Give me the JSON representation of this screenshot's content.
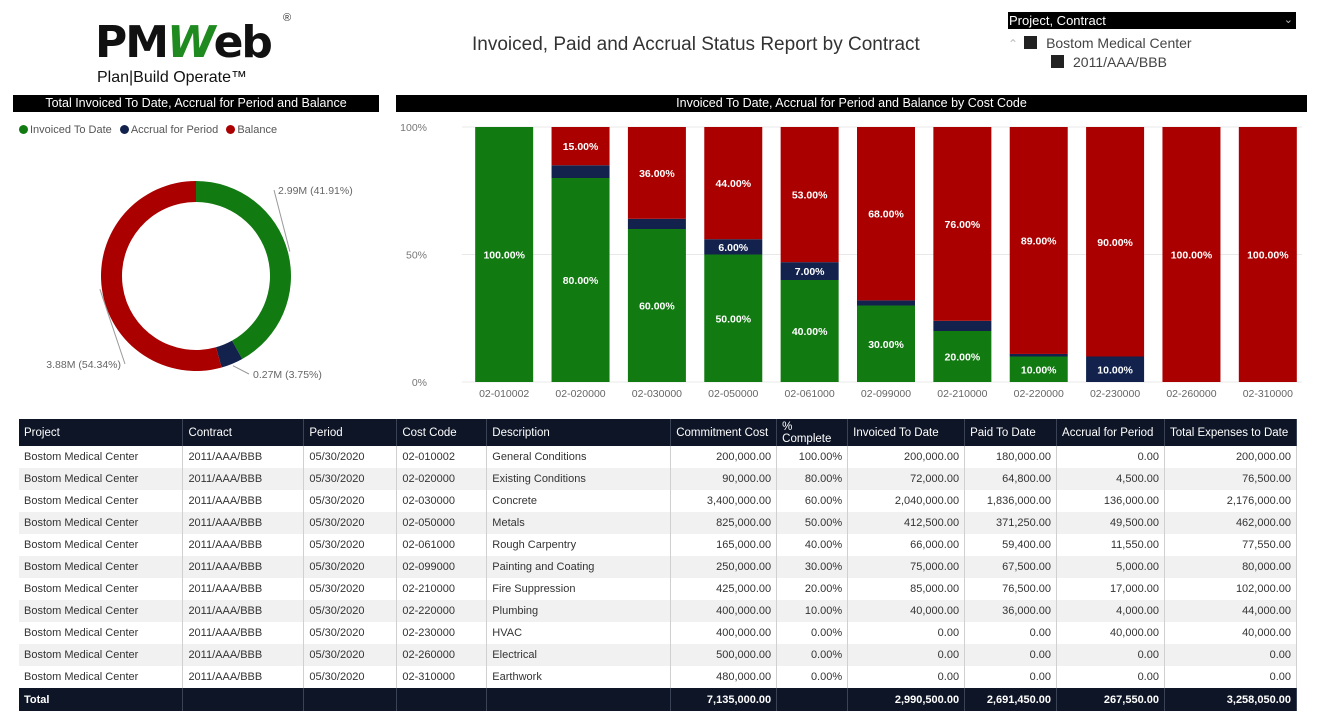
{
  "logo": {
    "word_a": "PM",
    "word_b": "W",
    "word_c": "eb",
    "reg": "®",
    "tagline": "Plan|Build Operate™"
  },
  "report_title": "Invoiced, Paid and Accrual Status Report by Contract",
  "slicer": {
    "header": "Project, Contract",
    "items": [
      {
        "label": "Bostom Medical Center",
        "level": 0
      },
      {
        "label": "2011/AAA/BBB",
        "level": 1
      }
    ]
  },
  "colors": {
    "invoiced": "#117a11",
    "accrual": "#12224d",
    "balance": "#ab0000",
    "header_bg": "#000000",
    "table_header_bg": "#0e1526"
  },
  "donut": {
    "header": "Total Invoiced To Date, Accrual for Period and Balance",
    "legend": [
      {
        "label": "Invoiced To Date",
        "color": "#117a11"
      },
      {
        "label": "Accrual for Period",
        "color": "#12224d"
      },
      {
        "label": "Balance",
        "color": "#ab0000"
      }
    ]
  },
  "bar": {
    "header": "Invoiced To Date, Accrual for Period and Balance by Cost Code"
  },
  "chart_data": [
    {
      "type": "pie",
      "title": "Total Invoiced To Date, Accrual for Period and Balance",
      "donut": true,
      "legend_position": "top-left",
      "slices": [
        {
          "name": "Invoiced To Date",
          "value": 2.99,
          "percent": 41.91,
          "label": "2.99M (41.91%)"
        },
        {
          "name": "Accrual for Period",
          "value": 0.27,
          "percent": 3.75,
          "label": "0.27M (3.75%)"
        },
        {
          "name": "Balance",
          "value": 3.88,
          "percent": 54.34,
          "label": "3.88M (54.34%)"
        }
      ]
    },
    {
      "type": "bar",
      "stacked": "100%",
      "title": "Invoiced To Date, Accrual for Period and Balance by Cost Code",
      "ylim": [
        0,
        100
      ],
      "yticks": [
        "0%",
        "50%",
        "100%"
      ],
      "categories": [
        "02-010002",
        "02-020000",
        "02-030000",
        "02-050000",
        "02-061000",
        "02-099000",
        "02-210000",
        "02-220000",
        "02-230000",
        "02-260000",
        "02-310000"
      ],
      "series": [
        {
          "name": "Invoiced To Date",
          "values": [
            100,
            80,
            60,
            50,
            40,
            30,
            20,
            10,
            0,
            0,
            0
          ],
          "labels": [
            "100.00%",
            "80.00%",
            "60.00%",
            "50.00%",
            "40.00%",
            "30.00%",
            "20.00%",
            "10.00%",
            "",
            "",
            ""
          ]
        },
        {
          "name": "Accrual for Period",
          "values": [
            0,
            5,
            4,
            6,
            7,
            2,
            4,
            1,
            10,
            0,
            0
          ],
          "labels": [
            "",
            "",
            "",
            "6.00%",
            "7.00%",
            "",
            "",
            "",
            "10.00%",
            "",
            ""
          ]
        },
        {
          "name": "Balance",
          "values": [
            0,
            15,
            36,
            44,
            53,
            68,
            76,
            89,
            90,
            100,
            100
          ],
          "labels": [
            "",
            "15.00%",
            "36.00%",
            "44.00%",
            "53.00%",
            "68.00%",
            "76.00%",
            "89.00%",
            "90.00%",
            "100.00%",
            "100.00%"
          ]
        }
      ]
    }
  ],
  "table": {
    "columns": [
      "Project",
      "Contract",
      "Period",
      "Cost Code",
      "Description",
      "Commitment Cost",
      "% Complete",
      "Invoiced To Date",
      "Paid To Date",
      "Accrual for Period",
      "Total Expenses to Date"
    ],
    "rows": [
      [
        "Bostom Medical Center",
        "2011/AAA/BBB",
        "05/30/2020",
        "02-010002",
        "General Conditions",
        "200,000.00",
        "100.00%",
        "200,000.00",
        "180,000.00",
        "0.00",
        "200,000.00"
      ],
      [
        "Bostom Medical Center",
        "2011/AAA/BBB",
        "05/30/2020",
        "02-020000",
        "Existing Conditions",
        "90,000.00",
        "80.00%",
        "72,000.00",
        "64,800.00",
        "4,500.00",
        "76,500.00"
      ],
      [
        "Bostom Medical Center",
        "2011/AAA/BBB",
        "05/30/2020",
        "02-030000",
        "Concrete",
        "3,400,000.00",
        "60.00%",
        "2,040,000.00",
        "1,836,000.00",
        "136,000.00",
        "2,176,000.00"
      ],
      [
        "Bostom Medical Center",
        "2011/AAA/BBB",
        "05/30/2020",
        "02-050000",
        "Metals",
        "825,000.00",
        "50.00%",
        "412,500.00",
        "371,250.00",
        "49,500.00",
        "462,000.00"
      ],
      [
        "Bostom Medical Center",
        "2011/AAA/BBB",
        "05/30/2020",
        "02-061000",
        "Rough Carpentry",
        "165,000.00",
        "40.00%",
        "66,000.00",
        "59,400.00",
        "11,550.00",
        "77,550.00"
      ],
      [
        "Bostom Medical Center",
        "2011/AAA/BBB",
        "05/30/2020",
        "02-099000",
        "Painting and Coating",
        "250,000.00",
        "30.00%",
        "75,000.00",
        "67,500.00",
        "5,000.00",
        "80,000.00"
      ],
      [
        "Bostom Medical Center",
        "2011/AAA/BBB",
        "05/30/2020",
        "02-210000",
        "Fire Suppression",
        "425,000.00",
        "20.00%",
        "85,000.00",
        "76,500.00",
        "17,000.00",
        "102,000.00"
      ],
      [
        "Bostom Medical Center",
        "2011/AAA/BBB",
        "05/30/2020",
        "02-220000",
        "Plumbing",
        "400,000.00",
        "10.00%",
        "40,000.00",
        "36,000.00",
        "4,000.00",
        "44,000.00"
      ],
      [
        "Bostom Medical Center",
        "2011/AAA/BBB",
        "05/30/2020",
        "02-230000",
        "HVAC",
        "400,000.00",
        "0.00%",
        "0.00",
        "0.00",
        "40,000.00",
        "40,000.00"
      ],
      [
        "Bostom Medical Center",
        "2011/AAA/BBB",
        "05/30/2020",
        "02-260000",
        "Electrical",
        "500,000.00",
        "0.00%",
        "0.00",
        "0.00",
        "0.00",
        "0.00"
      ],
      [
        "Bostom Medical Center",
        "2011/AAA/BBB",
        "05/30/2020",
        "02-310000",
        "Earthwork",
        "480,000.00",
        "0.00%",
        "0.00",
        "0.00",
        "0.00",
        "0.00"
      ]
    ],
    "totals": [
      "Total",
      "",
      "",
      "",
      "",
      "7,135,000.00",
      "",
      "2,990,500.00",
      "2,691,450.00",
      "267,550.00",
      "3,258,050.00"
    ]
  }
}
